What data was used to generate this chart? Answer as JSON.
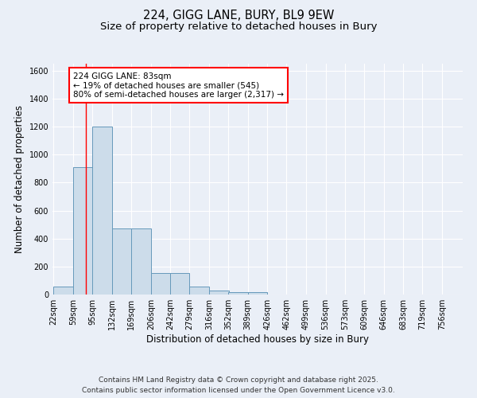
{
  "title_line1": "224, GIGG LANE, BURY, BL9 9EW",
  "title_line2": "Size of property relative to detached houses in Bury",
  "xlabel": "Distribution of detached houses by size in Bury",
  "ylabel": "Number of detached properties",
  "bin_labels": [
    "22sqm",
    "59sqm",
    "95sqm",
    "132sqm",
    "169sqm",
    "206sqm",
    "242sqm",
    "279sqm",
    "316sqm",
    "352sqm",
    "389sqm",
    "426sqm",
    "462sqm",
    "499sqm",
    "536sqm",
    "573sqm",
    "609sqm",
    "646sqm",
    "683sqm",
    "719sqm",
    "756sqm"
  ],
  "bin_edges": [
    22,
    59,
    95,
    132,
    169,
    206,
    242,
    279,
    316,
    352,
    389,
    426,
    462,
    499,
    536,
    573,
    609,
    646,
    683,
    719,
    756
  ],
  "bar_heights": [
    55,
    910,
    1200,
    475,
    475,
    155,
    155,
    55,
    30,
    15,
    15,
    0,
    0,
    0,
    0,
    0,
    0,
    0,
    0,
    0,
    0
  ],
  "bar_color": "#ccdcea",
  "bar_edge_color": "#6699bb",
  "red_line_x": 83,
  "annotation_text_line1": "224 GIGG LANE: 83sqm",
  "annotation_text_line2": "← 19% of detached houses are smaller (545)",
  "annotation_text_line3": "80% of semi-detached houses are larger (2,317) →",
  "ylim": [
    0,
    1650
  ],
  "yticks": [
    0,
    200,
    400,
    600,
    800,
    1000,
    1200,
    1400,
    1600
  ],
  "background_color": "#eaeff7",
  "grid_color": "#ffffff",
  "footer_line1": "Contains HM Land Registry data © Crown copyright and database right 2025.",
  "footer_line2": "Contains public sector information licensed under the Open Government Licence v3.0.",
  "title_fontsize": 10.5,
  "subtitle_fontsize": 9.5,
  "axis_label_fontsize": 8.5,
  "tick_fontsize": 7,
  "annotation_fontsize": 7.5,
  "footer_fontsize": 6.5
}
